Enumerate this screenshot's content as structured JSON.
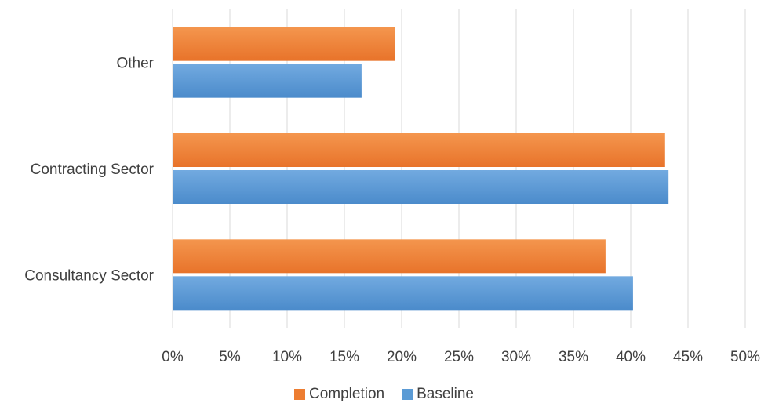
{
  "chart_data": {
    "type": "bar",
    "orientation": "horizontal",
    "title": "",
    "xlabel": "",
    "ylabel": "",
    "categories": [
      "Consultancy Sector",
      "Contracting Sector",
      "Other"
    ],
    "series": [
      {
        "name": "Completion",
        "color": "#ED7D31",
        "values": [
          37.8,
          43.0,
          19.4
        ]
      },
      {
        "name": "Baseline",
        "color": "#5B9BD5",
        "values": [
          40.2,
          43.3,
          16.5
        ]
      }
    ],
    "xlim": [
      0,
      50
    ],
    "x_ticks": [
      "0%",
      "5%",
      "10%",
      "15%",
      "20%",
      "25%",
      "30%",
      "35%",
      "40%",
      "45%",
      "50%"
    ],
    "x_tick_values": [
      0,
      5,
      10,
      15,
      20,
      25,
      30,
      35,
      40,
      45,
      50
    ],
    "grid": "vertical",
    "legend_position": "bottom-center"
  }
}
